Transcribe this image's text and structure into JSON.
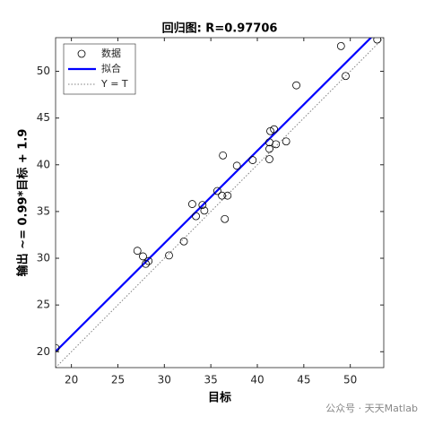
{
  "chart_data": {
    "type": "scatter",
    "title": "回归图: R=0.97706",
    "x_label": "目标",
    "y_label": "输出 ~= 0.99*目标 + 1.9",
    "x": [
      18.3,
      52.9,
      49.0,
      49.5,
      44.2,
      36.3,
      41.4,
      41.8,
      41.3,
      42.0,
      43.1,
      41.3,
      41.3,
      39.5,
      37.8,
      35.7,
      36.8,
      36.2,
      33.0,
      34.1,
      34.3,
      33.4,
      36.5,
      32.1,
      30.5,
      27.1,
      27.7,
      28.3,
      28.0
    ],
    "values": [
      20.4,
      53.4,
      52.7,
      49.5,
      48.5,
      41.0,
      43.6,
      43.8,
      42.4,
      42.2,
      42.5,
      41.7,
      40.6,
      40.5,
      39.9,
      37.2,
      36.7,
      36.7,
      35.8,
      35.7,
      35.1,
      34.5,
      34.2,
      31.8,
      30.3,
      30.8,
      30.2,
      29.7,
      29.4
    ],
    "legend": [
      "数据",
      "拟合",
      "Y = T"
    ],
    "fit": {
      "slope": 0.99,
      "intercept": 1.9,
      "color": "#0000ff"
    },
    "marker_color": "#000000",
    "identity_color": "#808080",
    "xlim": [
      18.3,
      53.6
    ],
    "ylim": [
      18.3,
      53.6
    ],
    "xticks": [
      20,
      25,
      30,
      35,
      40,
      45,
      50
    ],
    "yticks": [
      20,
      25,
      30,
      35,
      40,
      45,
      50
    ],
    "legend_position": "upper left"
  },
  "watermark": "公众号 · 天天Matlab"
}
